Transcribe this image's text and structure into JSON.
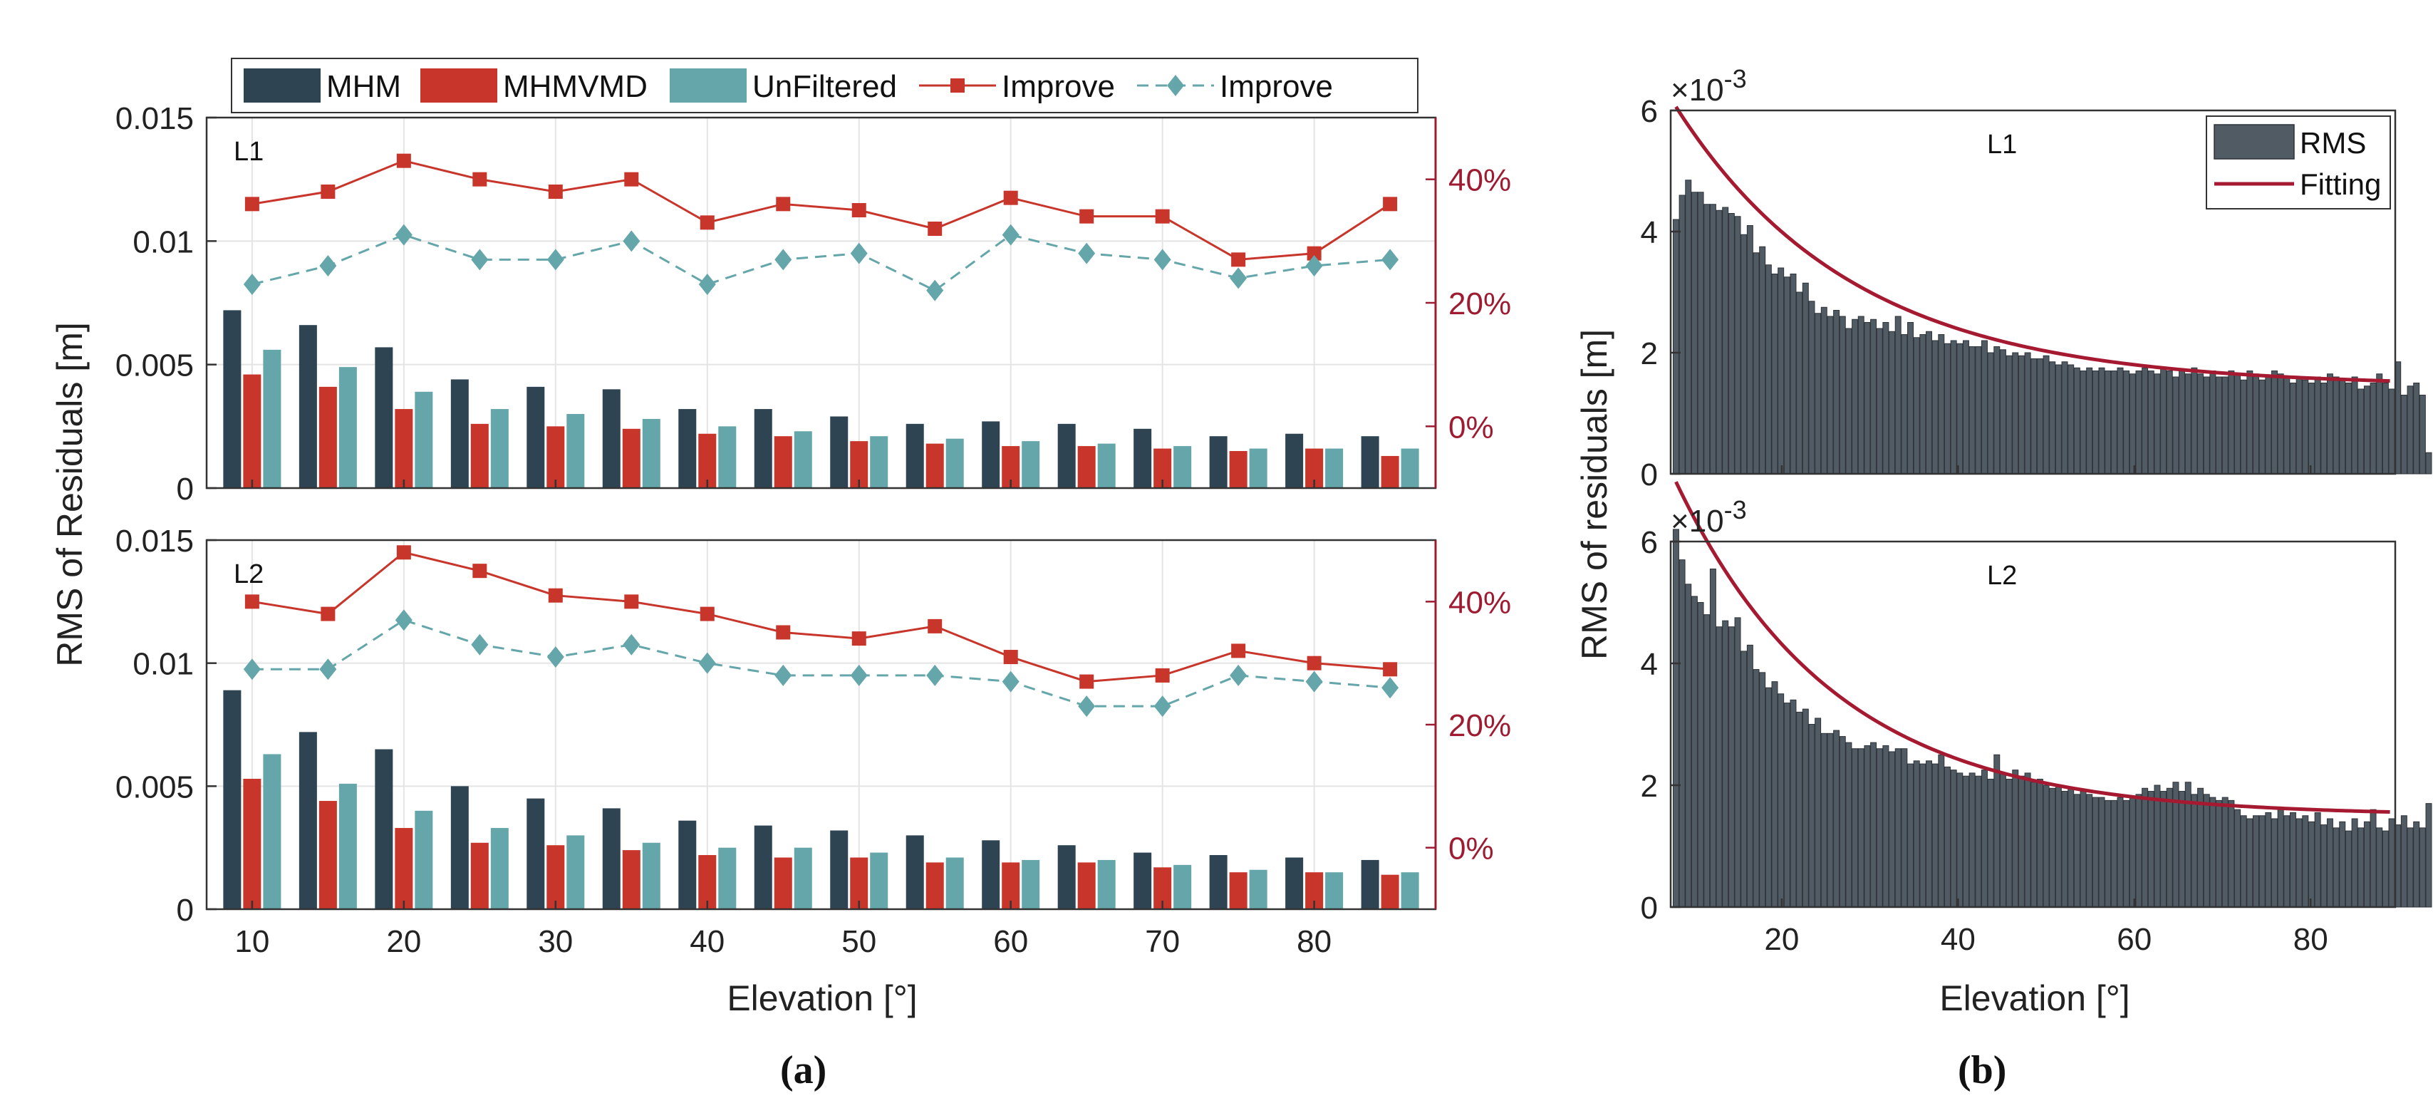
{
  "colors": {
    "mhm": "#2e4452",
    "mhmvmd": "#c8352a",
    "unfiltered": "#64a6aa",
    "improve_red": "#c8352a",
    "improve_teal": "#64a6aa",
    "right_axis": "#9e1b32",
    "hist_bar": "#515b64",
    "fitting": "#a51a30"
  },
  "legend_a": [
    "MHM",
    "MHMVMD",
    "UnFiltered",
    "Improve",
    "Improve"
  ],
  "legend_b": [
    "RMS",
    "Fitting"
  ],
  "captions": {
    "a": "(a)",
    "b": "(b)"
  },
  "chart_data": [
    {
      "type": "bar",
      "panel": "a",
      "subplot_label": "L1",
      "categories": [
        10,
        15,
        20,
        25,
        30,
        35,
        40,
        45,
        50,
        55,
        60,
        65,
        70,
        75,
        80,
        85
      ],
      "series": [
        {
          "name": "MHM",
          "values": [
            0.0072,
            0.0066,
            0.0057,
            0.0044,
            0.0041,
            0.004,
            0.0032,
            0.0032,
            0.0029,
            0.0026,
            0.0027,
            0.0026,
            0.0024,
            0.0021,
            0.0022,
            0.0021
          ]
        },
        {
          "name": "MHMVMD",
          "values": [
            0.0046,
            0.0041,
            0.0032,
            0.0026,
            0.0025,
            0.0024,
            0.0022,
            0.0021,
            0.0019,
            0.0018,
            0.0017,
            0.0017,
            0.0016,
            0.0015,
            0.0016,
            0.0013
          ]
        },
        {
          "name": "UnFiltered",
          "values": [
            0.0056,
            0.0049,
            0.0039,
            0.0032,
            0.003,
            0.0028,
            0.0025,
            0.0023,
            0.0021,
            0.002,
            0.0019,
            0.0018,
            0.0017,
            0.0016,
            0.0016,
            0.0016
          ]
        }
      ],
      "right_series": [
        {
          "name": "Improve",
          "marker": "square",
          "style": "solid",
          "values": [
            36,
            38,
            43,
            40,
            38,
            40,
            33,
            36,
            35,
            32,
            37,
            34,
            34,
            27,
            28,
            36
          ]
        },
        {
          "name": "Improve",
          "marker": "diamond",
          "style": "dashed",
          "values": [
            23,
            26,
            31,
            27,
            27,
            30,
            23,
            27,
            28,
            22,
            31,
            28,
            27,
            24,
            26,
            27
          ]
        }
      ],
      "ylim": [
        0,
        0.015
      ],
      "yticks": [
        0,
        0.005,
        0.01,
        0.015
      ],
      "ytick_labels": [
        "0",
        "0.005",
        "0.01",
        "0.015"
      ],
      "y2lim": [
        -10,
        50
      ],
      "y2ticks": [
        0,
        20,
        40
      ],
      "y2tick_labels": [
        "0%",
        "20%",
        "40%"
      ]
    },
    {
      "type": "bar",
      "panel": "a",
      "subplot_label": "L2",
      "categories": [
        10,
        15,
        20,
        25,
        30,
        35,
        40,
        45,
        50,
        55,
        60,
        65,
        70,
        75,
        80,
        85
      ],
      "series": [
        {
          "name": "MHM",
          "values": [
            0.0089,
            0.0072,
            0.0065,
            0.005,
            0.0045,
            0.0041,
            0.0036,
            0.0034,
            0.0032,
            0.003,
            0.0028,
            0.0026,
            0.0023,
            0.0022,
            0.0021,
            0.002
          ]
        },
        {
          "name": "MHMVMD",
          "values": [
            0.0053,
            0.0044,
            0.0033,
            0.0027,
            0.0026,
            0.0024,
            0.0022,
            0.0021,
            0.0021,
            0.0019,
            0.0019,
            0.0019,
            0.0017,
            0.0015,
            0.0015,
            0.0014
          ]
        },
        {
          "name": "UnFiltered",
          "values": [
            0.0063,
            0.0051,
            0.004,
            0.0033,
            0.003,
            0.0027,
            0.0025,
            0.0025,
            0.0023,
            0.0021,
            0.002,
            0.002,
            0.0018,
            0.0016,
            0.0015,
            0.0015
          ]
        }
      ],
      "right_series": [
        {
          "name": "Improve",
          "marker": "square",
          "style": "solid",
          "values": [
            40,
            38,
            48,
            45,
            41,
            40,
            38,
            35,
            34,
            36,
            31,
            27,
            28,
            32,
            30,
            29
          ]
        },
        {
          "name": "Improve",
          "marker": "diamond",
          "style": "dashed",
          "values": [
            29,
            29,
            37,
            33,
            31,
            33,
            30,
            28,
            28,
            28,
            27,
            23,
            23,
            28,
            27,
            26
          ]
        }
      ],
      "ylim": [
        0,
        0.015
      ],
      "yticks": [
        0,
        0.005,
        0.01,
        0.015
      ],
      "ytick_labels": [
        "0",
        "0.005",
        "0.01",
        "0.015"
      ],
      "y2lim": [
        -10,
        50
      ],
      "y2ticks": [
        0,
        20,
        40
      ],
      "y2tick_labels": [
        "0%",
        "20%",
        "40%"
      ],
      "xticks": [
        10,
        20,
        30,
        40,
        50,
        60,
        70,
        80
      ],
      "xlabel": "Elevation [°]"
    },
    {
      "type": "bar",
      "panel": "b",
      "subplot_label": "L1",
      "x_start": 8,
      "x_step": 0.7,
      "values": [
        4.2,
        4.6,
        4.85,
        4.65,
        4.65,
        4.45,
        4.45,
        4.35,
        4.4,
        4.3,
        4.25,
        3.95,
        4.1,
        3.65,
        3.75,
        3.45,
        3.3,
        3.4,
        3.25,
        3.3,
        3.0,
        3.15,
        2.85,
        2.65,
        2.75,
        2.6,
        2.7,
        2.6,
        2.4,
        2.55,
        2.6,
        2.5,
        2.55,
        2.4,
        2.5,
        2.35,
        2.6,
        2.3,
        2.5,
        2.25,
        2.3,
        2.35,
        2.2,
        2.3,
        2.15,
        2.2,
        2.15,
        2.2,
        2.1,
        2.1,
        2.2,
        2.0,
        2.1,
        2.05,
        1.95,
        2.0,
        1.95,
        2.0,
        1.9,
        1.9,
        1.95,
        1.85,
        1.8,
        1.85,
        1.8,
        1.75,
        1.7,
        1.75,
        1.7,
        1.75,
        1.7,
        1.7,
        1.75,
        1.7,
        1.65,
        1.7,
        1.75,
        1.7,
        1.65,
        1.75,
        1.7,
        1.6,
        1.7,
        1.65,
        1.75,
        1.65,
        1.6,
        1.7,
        1.6,
        1.6,
        1.7,
        1.65,
        1.55,
        1.7,
        1.65,
        1.55,
        1.6,
        1.7,
        1.65,
        1.6,
        1.5,
        1.6,
        1.55,
        1.5,
        1.6,
        1.5,
        1.65,
        1.6,
        1.55,
        1.5,
        1.6,
        1.4,
        1.45,
        1.5,
        1.65,
        1.5,
        1.4,
        1.85,
        1.3,
        1.45,
        1.5,
        1.3,
        0.35
      ],
      "fitting": {
        "a": 4.61,
        "b": 0.0495,
        "c": 1.45,
        "x_from": 8,
        "x_to": 89
      },
      "ylim": [
        0,
        6
      ],
      "yticks": [
        0,
        2,
        4,
        6
      ],
      "ytick_labels": [
        "0",
        "2",
        "4",
        "6"
      ],
      "y_multiplier": "×10",
      "y_exponent": "-3"
    },
    {
      "type": "bar",
      "panel": "b",
      "subplot_label": "L2",
      "x_start": 8,
      "x_step": 0.7,
      "values": [
        6.2,
        5.7,
        5.3,
        5.1,
        5.0,
        4.8,
        5.55,
        4.6,
        4.7,
        4.6,
        4.75,
        4.2,
        4.3,
        3.9,
        3.85,
        3.6,
        3.7,
        3.5,
        3.35,
        3.4,
        3.2,
        3.25,
        3.0,
        3.1,
        2.85,
        2.85,
        2.9,
        2.8,
        2.7,
        2.6,
        2.6,
        2.65,
        2.7,
        2.6,
        2.65,
        2.55,
        2.6,
        2.6,
        2.35,
        2.4,
        2.35,
        2.4,
        2.35,
        2.5,
        2.3,
        2.25,
        2.2,
        2.15,
        2.2,
        2.15,
        2.25,
        2.1,
        2.5,
        2.2,
        2.1,
        2.25,
        2.15,
        2.2,
        2.05,
        2.1,
        2.0,
        1.95,
        2.0,
        1.9,
        1.95,
        1.85,
        1.9,
        1.85,
        1.8,
        1.8,
        1.75,
        1.75,
        1.8,
        1.75,
        1.8,
        1.85,
        1.95,
        1.9,
        2.0,
        1.9,
        1.95,
        2.05,
        1.9,
        2.05,
        1.85,
        1.95,
        1.85,
        1.8,
        1.75,
        1.8,
        1.75,
        1.6,
        1.5,
        1.45,
        1.5,
        1.5,
        1.55,
        1.45,
        1.6,
        1.5,
        1.55,
        1.45,
        1.5,
        1.4,
        1.55,
        1.35,
        1.45,
        1.3,
        1.4,
        1.25,
        1.45,
        1.3,
        1.4,
        1.6,
        1.3,
        1.25,
        1.45,
        1.35,
        1.5,
        1.3,
        1.4,
        1.3,
        1.7
      ],
      "fitting": {
        "a": 5.48,
        "b": 0.0555,
        "c": 1.5,
        "x_from": 8,
        "x_to": 89
      },
      "ylim": [
        0,
        6
      ],
      "yticks": [
        0,
        2,
        4,
        6
      ],
      "ytick_labels": [
        "0",
        "2",
        "4",
        "6"
      ],
      "y_multiplier": "×10",
      "y_exponent": "-3",
      "xticks": [
        20,
        40,
        60,
        80
      ],
      "xlabel": "Elevation [°]"
    }
  ],
  "ylabel_a": "RMS of Residuals [m]",
  "ylabel_b": "RMS of residuals [m]",
  "xlabel_a": "Elevation [°]",
  "xlabel_b": "Elevation [°]"
}
